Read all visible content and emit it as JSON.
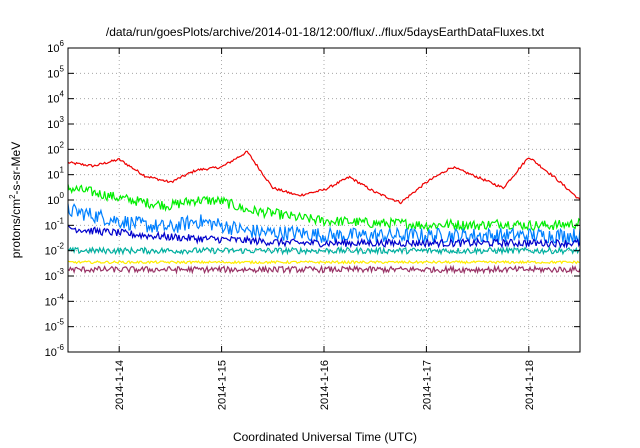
{
  "chart_data": {
    "type": "line",
    "title": "/data/run/goesPlots/archive/2014-01-18/12:00/flux/../flux/5daysEarthDataFluxes.txt",
    "xlabel": "Coordinated Universal Time (UTC)",
    "ylabel_main": "protons/cm",
    "ylabel_exp": "2",
    "ylabel_tail": "-s-sr-MeV",
    "y_scale": "log",
    "ylim": [
      1e-06,
      1000000.0
    ],
    "xlim": [
      "2014-01-13T12:00",
      "2014-01-18T12:00"
    ],
    "x_ticks": [
      "2014-1-14",
      "2014-1-15",
      "2014-1-16",
      "2014-1-17",
      "2014-1-18"
    ],
    "y_ticks": [
      {
        "base": "10",
        "exp": "-6"
      },
      {
        "base": "10",
        "exp": "-5"
      },
      {
        "base": "10",
        "exp": "-4"
      },
      {
        "base": "10",
        "exp": "-3"
      },
      {
        "base": "10",
        "exp": "-2"
      },
      {
        "base": "10",
        "exp": "-1"
      },
      {
        "base": "10",
        "exp": "0"
      },
      {
        "base": "10",
        "exp": "1"
      },
      {
        "base": "10",
        "exp": "2"
      },
      {
        "base": "10",
        "exp": "3"
      },
      {
        "base": "10",
        "exp": "4"
      },
      {
        "base": "10",
        "exp": "5"
      },
      {
        "base": "10",
        "exp": "6"
      }
    ],
    "grid": true,
    "legend": "none",
    "series": [
      {
        "color": "#ee0000",
        "noise": 0.05,
        "x": [
          "2014-01-13T12:00",
          "2014-01-13T18:00",
          "2014-01-14T00:00",
          "2014-01-14T06:00",
          "2014-01-14T12:00",
          "2014-01-14T18:00",
          "2014-01-15T00:00",
          "2014-01-15T06:00",
          "2014-01-15T12:00",
          "2014-01-15T18:00",
          "2014-01-16T00:00",
          "2014-01-16T06:00",
          "2014-01-16T12:00",
          "2014-01-16T18:00",
          "2014-01-17T00:00",
          "2014-01-17T06:00",
          "2014-01-17T12:00",
          "2014-01-17T18:00",
          "2014-01-18T00:00",
          "2014-01-18T06:00",
          "2014-01-18T12:00"
        ],
        "y": [
          30,
          22,
          40,
          9,
          5,
          15,
          20,
          80,
          3,
          1.5,
          2.5,
          8,
          2,
          0.8,
          5,
          20,
          8,
          3,
          50,
          8,
          1
        ]
      },
      {
        "color": "#00ee00",
        "noise": 0.2,
        "x": [
          "2014-01-13T12:00",
          "2014-01-13T18:00",
          "2014-01-14T00:00",
          "2014-01-14T06:00",
          "2014-01-14T12:00",
          "2014-01-14T18:00",
          "2014-01-15T00:00",
          "2014-01-15T06:00",
          "2014-01-15T12:00",
          "2014-01-15T18:00",
          "2014-01-16T00:00",
          "2014-01-16T06:00",
          "2014-01-16T12:00",
          "2014-01-16T18:00",
          "2014-01-17T00:00",
          "2014-01-17T06:00",
          "2014-01-17T12:00",
          "2014-01-17T18:00",
          "2014-01-18T00:00",
          "2014-01-18T06:00",
          "2014-01-18T12:00"
        ],
        "y": [
          3,
          2,
          1.2,
          0.8,
          0.6,
          1,
          0.9,
          0.4,
          0.3,
          0.2,
          0.15,
          0.14,
          0.12,
          0.12,
          0.1,
          0.11,
          0.1,
          0.12,
          0.1,
          0.1,
          0.12
        ]
      },
      {
        "color": "#0080ff",
        "noise": 0.3,
        "x": [
          "2014-01-13T12:00",
          "2014-01-13T18:00",
          "2014-01-14T00:00",
          "2014-01-14T06:00",
          "2014-01-14T12:00",
          "2014-01-14T18:00",
          "2014-01-15T00:00",
          "2014-01-15T06:00",
          "2014-01-15T12:00",
          "2014-01-15T18:00",
          "2014-01-16T00:00",
          "2014-01-16T06:00",
          "2014-01-16T12:00",
          "2014-01-16T18:00",
          "2014-01-17T00:00",
          "2014-01-17T06:00",
          "2014-01-17T12:00",
          "2014-01-17T18:00",
          "2014-01-18T00:00",
          "2014-01-18T06:00",
          "2014-01-18T12:00"
        ],
        "y": [
          0.4,
          0.25,
          0.15,
          0.1,
          0.08,
          0.15,
          0.1,
          0.06,
          0.05,
          0.05,
          0.04,
          0.04,
          0.04,
          0.04,
          0.04,
          0.04,
          0.04,
          0.04,
          0.04,
          0.04,
          0.04
        ]
      },
      {
        "color": "#0000cc",
        "noise": 0.15,
        "x": [
          "2014-01-13T12:00",
          "2014-01-13T18:00",
          "2014-01-14T00:00",
          "2014-01-14T06:00",
          "2014-01-14T12:00",
          "2014-01-14T18:00",
          "2014-01-15T00:00",
          "2014-01-15T06:00",
          "2014-01-15T12:00",
          "2014-01-15T18:00",
          "2014-01-16T00:00",
          "2014-01-16T06:00",
          "2014-01-16T12:00",
          "2014-01-16T18:00",
          "2014-01-17T00:00",
          "2014-01-17T06:00",
          "2014-01-17T12:00",
          "2014-01-17T18:00",
          "2014-01-18T00:00",
          "2014-01-18T06:00",
          "2014-01-18T12:00"
        ],
        "y": [
          0.08,
          0.06,
          0.05,
          0.04,
          0.035,
          0.03,
          0.028,
          0.025,
          0.022,
          0.02,
          0.02,
          0.02,
          0.02,
          0.02,
          0.02,
          0.02,
          0.02,
          0.02,
          0.02,
          0.02,
          0.02
        ]
      },
      {
        "color": "#00b0a0",
        "noise": 0.12,
        "x": [
          "2014-01-13T12:00",
          "2014-01-18T12:00"
        ],
        "y": [
          0.01,
          0.01
        ]
      },
      {
        "color": "#ffee00",
        "noise": 0.05,
        "x": [
          "2014-01-13T12:00",
          "2014-01-18T12:00"
        ],
        "y": [
          0.0035,
          0.0035
        ]
      },
      {
        "color": "#993366",
        "noise": 0.12,
        "x": [
          "2014-01-13T12:00",
          "2014-01-18T12:00"
        ],
        "y": [
          0.0018,
          0.0018
        ]
      }
    ]
  }
}
